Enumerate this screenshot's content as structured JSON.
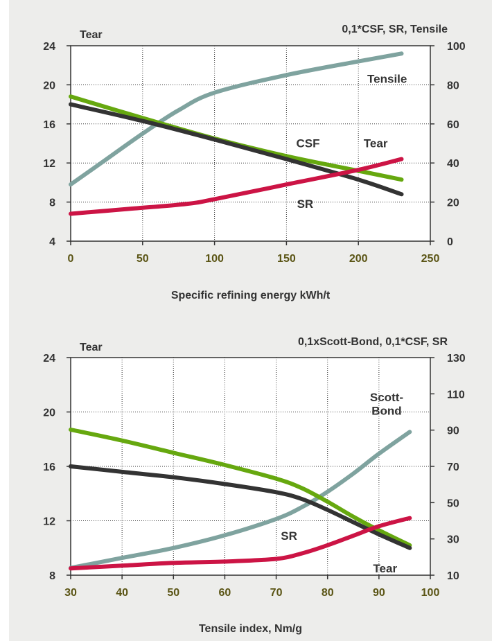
{
  "colors": {
    "background": "#ededeb",
    "tensile": "#7fa39f",
    "csf": "#66a80f",
    "sr": "#333333",
    "tear": "#cc1445",
    "x_tick_text": "#5a5414",
    "grid": "#333333"
  },
  "chart_data": [
    {
      "type": "line",
      "title": "0,1*CSF, SR, Tensile",
      "xlabel": "Specific refining energy kWh/t",
      "ylabel_left": "Tear",
      "ylabel_right": "",
      "xlim": [
        0,
        250
      ],
      "ylim_left": [
        4,
        24
      ],
      "ylim_right": [
        0,
        100
      ],
      "x_ticks": [
        "0",
        "50",
        "100",
        "150",
        "200",
        "250"
      ],
      "y_left_ticks": [
        "4",
        "8",
        "12",
        "16",
        "20",
        "24"
      ],
      "y_right_ticks": [
        "0",
        "20",
        "40",
        "60",
        "80",
        "100"
      ],
      "grid": true,
      "series": [
        {
          "name": "Tensile",
          "axis": "right",
          "color_key": "tensile",
          "x": [
            0,
            25,
            50,
            75,
            100,
            150,
            200,
            230
          ],
          "y": [
            29,
            42,
            55,
            67,
            76,
            85,
            92,
            96
          ]
        },
        {
          "name": "CSF",
          "axis": "left",
          "color_key": "csf",
          "x": [
            0,
            50,
            100,
            150,
            200,
            230
          ],
          "y": [
            18.8,
            16.6,
            14.5,
            12.7,
            11.2,
            10.3
          ]
        },
        {
          "name": "SR",
          "axis": "left",
          "color_key": "sr",
          "x": [
            0,
            50,
            100,
            150,
            200,
            230
          ],
          "y": [
            18.0,
            16.3,
            14.4,
            12.4,
            10.3,
            8.8
          ]
        },
        {
          "name": "Tear",
          "axis": "left",
          "color_key": "tear",
          "x": [
            0,
            40,
            80,
            100,
            150,
            200,
            230
          ],
          "y": [
            6.8,
            7.3,
            7.8,
            8.3,
            9.8,
            11.3,
            12.4
          ]
        }
      ],
      "annotations": [
        {
          "text": "Tensile",
          "x": 220,
          "y_left": 20.2
        },
        {
          "text": "CSF",
          "x": 165,
          "y_left": 13.6
        },
        {
          "text": "Tear",
          "x": 212,
          "y_left": 13.6
        },
        {
          "text": "SR",
          "x": 163,
          "y_left": 7.4
        }
      ]
    },
    {
      "type": "line",
      "title": "0,1xScott-Bond, 0,1*CSF, SR",
      "xlabel": "Tensile index, Nm/g",
      "ylabel_left": "Tear",
      "ylabel_right": "",
      "xlim": [
        30,
        100
      ],
      "ylim_left": [
        8,
        24
      ],
      "ylim_right": [
        10,
        130
      ],
      "x_ticks": [
        "30",
        "40",
        "50",
        "60",
        "70",
        "80",
        "90",
        "100"
      ],
      "y_left_ticks": [
        "8",
        "12",
        "16",
        "20",
        "24"
      ],
      "y_right_ticks": [
        "10",
        "30",
        "50",
        "70",
        "90",
        "110",
        "130"
      ],
      "grid": true,
      "series": [
        {
          "name": "Scott-Bond",
          "axis": "right",
          "color_key": "tensile",
          "x": [
            30,
            40,
            50,
            60,
            70,
            75,
            80,
            85,
            90,
            96
          ],
          "y": [
            14,
            19.5,
            25,
            32,
            41,
            47.5,
            56,
            66,
            77,
            89
          ]
        },
        {
          "name": "CSF",
          "axis": "left",
          "color_key": "csf",
          "x": [
            30,
            40,
            50,
            60,
            70,
            75,
            80,
            85,
            90,
            96
          ],
          "y": [
            18.7,
            17.9,
            17.0,
            16.1,
            15.1,
            14.4,
            13.4,
            12.3,
            11.3,
            10.2
          ]
        },
        {
          "name": "SR",
          "axis": "left",
          "color_key": "sr",
          "x": [
            30,
            40,
            50,
            60,
            70,
            75,
            80,
            85,
            90,
            96
          ],
          "y": [
            16.0,
            15.6,
            15.2,
            14.7,
            14.1,
            13.6,
            12.8,
            11.9,
            11.0,
            10.0
          ]
        },
        {
          "name": "Tear",
          "axis": "left",
          "color_key": "tear",
          "x": [
            30,
            40,
            50,
            60,
            70,
            75,
            80,
            85,
            90,
            96
          ],
          "y": [
            8.5,
            8.7,
            8.9,
            9.0,
            9.2,
            9.6,
            10.2,
            10.9,
            11.6,
            12.2
          ]
        }
      ],
      "annotations": [
        {
          "text": "Scott-",
          "x": 91.5,
          "y_left": 20.8
        },
        {
          "text": "Bond",
          "x": 91.5,
          "y_left": 19.8
        },
        {
          "text": "SR",
          "x": 72.5,
          "y_left": 10.6
        },
        {
          "text": "Tear",
          "x": 91.2,
          "y_left": 8.2
        }
      ]
    }
  ]
}
